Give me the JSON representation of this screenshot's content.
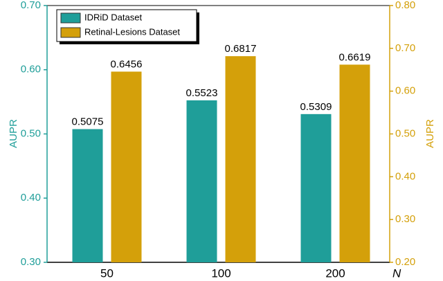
{
  "chart_data": {
    "type": "bar",
    "categories": [
      "50",
      "100",
      "200"
    ],
    "x_label": "N",
    "y_label": "AUPR",
    "y2_label": "AUPR",
    "series": [
      {
        "name": "IDRiD Dataset",
        "color": "#1f9e99",
        "values": [
          0.5075,
          0.5523,
          0.5309
        ]
      },
      {
        "name": "Retinal-Lesions Dataset",
        "color": "#d4a00a",
        "axis": "y2",
        "values": [
          0.6456,
          0.6817,
          0.6619
        ]
      }
    ],
    "ylim": [
      0.3,
      0.7
    ],
    "yticks": [
      {
        "value": 0.3,
        "label": "0.30"
      },
      {
        "value": 0.4,
        "label": "0.40"
      },
      {
        "value": 0.5,
        "label": "0.50"
      },
      {
        "value": 0.6,
        "label": "0.60"
      },
      {
        "value": 0.7,
        "label": "0.70"
      }
    ],
    "y2lim": [
      0.2,
      0.8
    ],
    "y2ticks": [
      {
        "value": 0.2,
        "label": "0.20"
      },
      {
        "value": 0.3,
        "label": "0.30"
      },
      {
        "value": 0.4,
        "label": "0.40"
      },
      {
        "value": 0.5,
        "label": "0.50"
      },
      {
        "value": 0.6,
        "label": "0.60"
      },
      {
        "value": 0.7,
        "label": "0.70"
      },
      {
        "value": 0.8,
        "label": "0.80"
      }
    ],
    "legend": "upper left"
  }
}
